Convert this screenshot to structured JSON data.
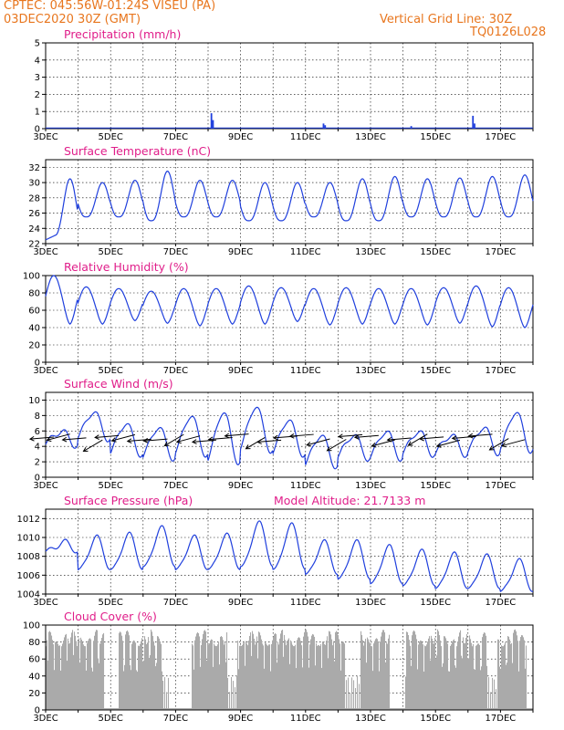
{
  "header": {
    "line1": "CPTEC:   045:56W-01:24S   VISEU (PA)",
    "line2": "03DEC2020  30Z (GMT)",
    "right1": "Vertical Grid Line: 30Z",
    "right2": "TQ0126L028"
  },
  "colors": {
    "line": "#1f3fdd",
    "title": "#e01e8a",
    "header": "#e8761e",
    "cloud": "#aaaaaa"
  },
  "chart_data": [
    {
      "type": "bar",
      "title": "Precipitation (mm/h)",
      "x_ticks": [
        "3DEC",
        "5DEC",
        "7DEC",
        "9DEC",
        "11DEC",
        "13DEC",
        "15DEC",
        "17DEC"
      ],
      "ylim": [
        0,
        5
      ],
      "y_ticks": [
        0,
        1,
        2,
        3,
        4,
        5
      ],
      "values": [
        [
          8.1,
          0.9
        ],
        [
          8.15,
          0.5
        ],
        [
          11.55,
          0.3
        ],
        [
          11.6,
          0.2
        ],
        [
          14.25,
          0.15
        ],
        [
          16.15,
          0.75
        ],
        [
          16.2,
          0.3
        ]
      ]
    },
    {
      "type": "line",
      "title": "Surface Temperature (nC)",
      "x_ticks": [
        "3DEC",
        "5DEC",
        "7DEC",
        "9DEC",
        "11DEC",
        "13DEC",
        "15DEC",
        "17DEC"
      ],
      "ylim": [
        22,
        33
      ],
      "y_ticks": [
        22,
        24,
        26,
        28,
        30,
        32
      ],
      "max": [
        30.5,
        30.0,
        30.3,
        31.5,
        30.3,
        30.3,
        30.0,
        30.0,
        30.0,
        30.5,
        30.8,
        30.5,
        30.6,
        30.8,
        31.0
      ],
      "min": [
        23.0,
        25.5,
        25.5,
        25.0,
        25.5,
        25.5,
        25.0,
        25.0,
        25.5,
        25.0,
        25.0,
        25.5,
        25.5,
        25.5,
        25.5
      ]
    },
    {
      "type": "line",
      "title": "Relative Humidity (%)",
      "x_ticks": [
        "3DEC",
        "5DEC",
        "7DEC",
        "9DEC",
        "11DEC",
        "13DEC",
        "15DEC",
        "17DEC"
      ],
      "ylim": [
        0,
        100
      ],
      "y_ticks": [
        0,
        20,
        40,
        60,
        80,
        100
      ],
      "max": [
        100,
        87,
        85,
        82,
        85,
        85,
        88,
        86,
        85,
        86,
        85,
        85,
        86,
        88,
        86
      ],
      "min": [
        44,
        44,
        48,
        45,
        42,
        44,
        44,
        47,
        43,
        44,
        44,
        43,
        45,
        41,
        40
      ]
    },
    {
      "type": "line",
      "title": "Surface Wind (m/s)",
      "x_ticks": [
        "3DEC",
        "5DEC",
        "7DEC",
        "9DEC",
        "11DEC",
        "13DEC",
        "15DEC",
        "17DEC"
      ],
      "ylim": [
        0,
        11
      ],
      "y_ticks": [
        0,
        2,
        4,
        6,
        8,
        10
      ],
      "max": [
        6.0,
        8.5,
        7.0,
        6.5,
        8.0,
        8.5,
        9.2,
        7.5,
        5.5,
        5.5,
        6.0,
        6.0,
        5.5,
        6.5,
        8.5
      ],
      "min": [
        4.2,
        5.0,
        3.0,
        2.5,
        3.0,
        2.0,
        3.5,
        3.0,
        1.5,
        2.5,
        2.5,
        3.0,
        3.0,
        3.2,
        3.5
      ]
    },
    {
      "type": "line",
      "title": "Surface Pressure (hPa)",
      "annotation": "Model Altitude: 21.7133 m",
      "x_ticks": [
        "3DEC",
        "5DEC",
        "7DEC",
        "9DEC",
        "11DEC",
        "13DEC",
        "15DEC",
        "17DEC"
      ],
      "ylim": [
        1004,
        1013
      ],
      "y_ticks": [
        1004,
        1006,
        1008,
        1010,
        1012
      ],
      "max": [
        1009.5,
        1010.0,
        1010.3,
        1011.0,
        1010.0,
        1010.2,
        1011.5,
        1011.3,
        1009.5,
        1009.5,
        1009.0,
        1008.5,
        1008.2,
        1008.0,
        1007.5
      ],
      "min": [
        1008.5,
        1006.5,
        1006.5,
        1006.8,
        1006.5,
        1006.5,
        1006.8,
        1006.5,
        1006.0,
        1005.5,
        1005.0,
        1004.8,
        1004.5,
        1004.5,
        1004.2
      ]
    },
    {
      "type": "area",
      "title": "Cloud Cover (%)",
      "x_ticks": [
        "3DEC",
        "5DEC",
        "7DEC",
        "9DEC",
        "11DEC",
        "13DEC",
        "15DEC",
        "17DEC"
      ],
      "ylim": [
        0,
        100
      ],
      "y_ticks": [
        0,
        20,
        40,
        60,
        80,
        100
      ],
      "clear_spans": [
        [
          4.8,
          5.25
        ],
        [
          6.6,
          7.5
        ],
        [
          8.6,
          8.9
        ],
        [
          12.2,
          12.7
        ],
        [
          13.6,
          14.1
        ],
        [
          16.6,
          16.9
        ],
        [
          17.8,
          18.1
        ]
      ]
    }
  ]
}
